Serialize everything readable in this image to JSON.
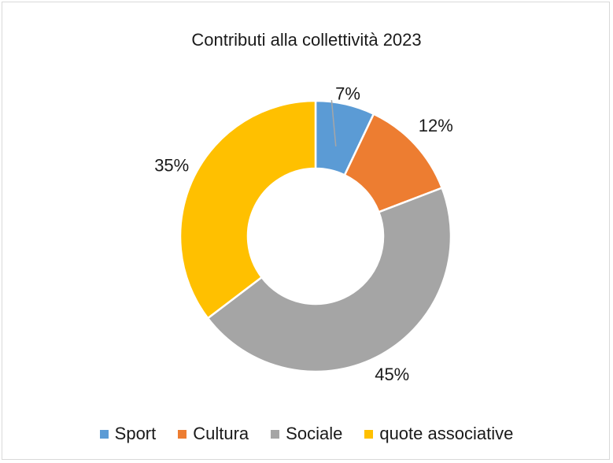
{
  "chart_data": {
    "type": "pie",
    "donut": true,
    "title": "Contributi alla collettività 2023",
    "categories": [
      "Sport",
      "Cultura",
      "Sociale",
      "quote associative"
    ],
    "values": [
      7,
      12,
      45,
      35
    ],
    "labels": [
      "7%",
      "12%",
      "45%",
      "35%"
    ],
    "colors": [
      "#5b9bd5",
      "#ed7d31",
      "#a5a5a5",
      "#ffc000"
    ],
    "legend_position": "bottom"
  }
}
